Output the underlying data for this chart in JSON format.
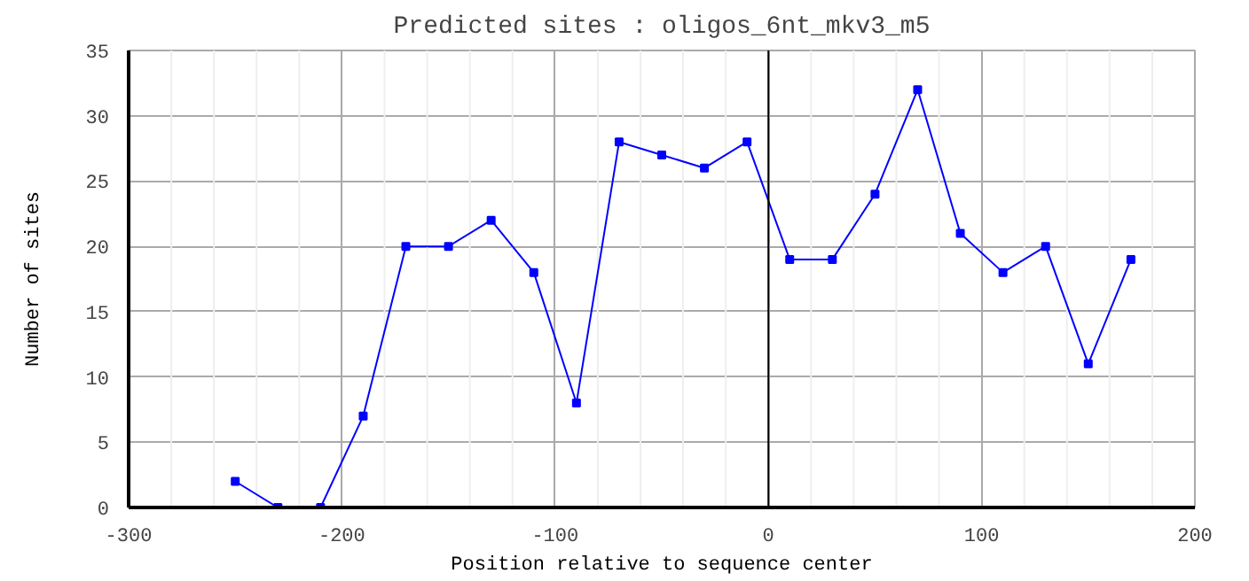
{
  "chart_data": {
    "type": "line",
    "title": "Predicted sites : oligos_6nt_mkv3_m5",
    "xlabel": "Position relative to sequence center",
    "ylabel": "Number of sites",
    "x": [
      -250,
      -230,
      -210,
      -190,
      -170,
      -150,
      -130,
      -110,
      -90,
      -70,
      -50,
      -30,
      -10,
      10,
      30,
      50,
      70,
      90,
      110,
      130,
      150,
      170
    ],
    "series": [
      {
        "color": "#0000ff",
        "values": [
          2,
          0,
          0,
          7,
          20,
          20,
          22,
          18,
          8,
          28,
          27,
          26,
          28,
          19,
          19,
          24,
          32,
          21,
          18,
          20,
          11,
          19
        ]
      }
    ],
    "xlim": [
      -300,
      200
    ],
    "ylim": [
      0,
      35
    ],
    "xticks": [
      -300,
      {
        "value": -280,
        "label": null
      },
      {
        "value": -260,
        "label": null
      },
      {
        "value": -240,
        "label": null
      },
      {
        "value": -220,
        "label": null
      },
      -200,
      {
        "value": -180,
        "label": null
      },
      {
        "value": -160,
        "label": null
      },
      {
        "value": -140,
        "label": null
      },
      {
        "value": -120,
        "label": null
      },
      -100,
      {
        "value": -80,
        "label": null
      },
      {
        "value": -60,
        "label": null
      },
      {
        "value": -40,
        "label": null
      },
      {
        "value": -20,
        "label": null
      },
      0,
      {
        "value": 20,
        "label": null
      },
      {
        "value": 40,
        "label": null
      },
      {
        "value": 60,
        "label": null
      },
      {
        "value": 80,
        "label": null
      },
      100,
      {
        "value": 120,
        "label": null
      },
      {
        "value": 140,
        "label": null
      },
      {
        "value": 160,
        "label": null
      },
      {
        "value": 180,
        "label": null
      },
      200
    ],
    "yticks": [
      0,
      5,
      10,
      15,
      20,
      25,
      30,
      35
    ],
    "ref_lines": [
      {
        "axis": "x",
        "value": 0,
        "color": "#000000"
      }
    ],
    "grid": true,
    "marker": "square",
    "line_style": "solid"
  }
}
